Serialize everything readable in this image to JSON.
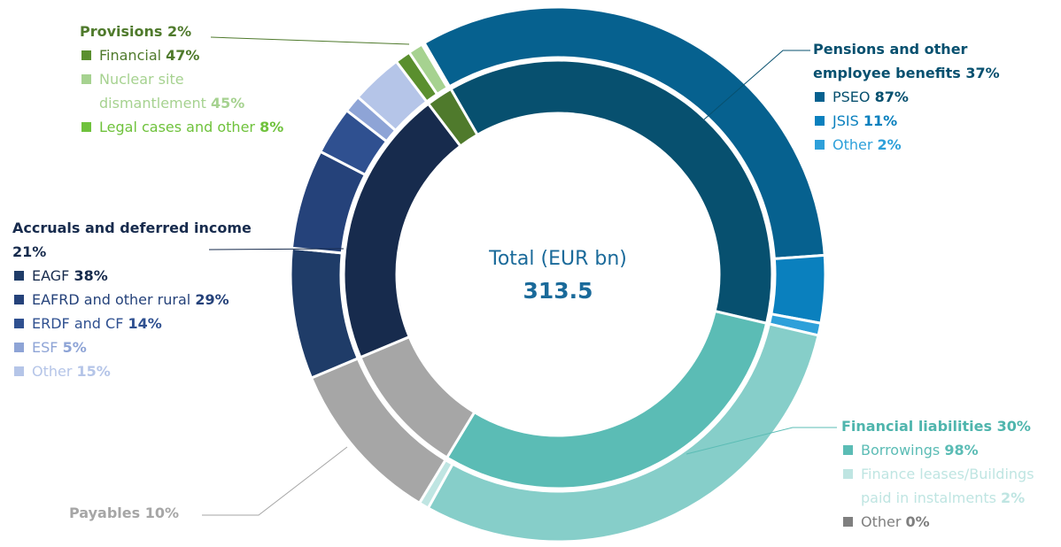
{
  "chart_data": {
    "type": "nested-donut",
    "center_label": "Total (EUR bn)",
    "center_value": 313.5,
    "series": [
      {
        "name": "Pensions and other employee benefits",
        "value": 37,
        "value_label": "37%",
        "color": "#07506f",
        "children": [
          {
            "name": "PSEO",
            "value": 87,
            "value_label": "87%",
            "color": "#06618f"
          },
          {
            "name": "JSIS",
            "value": 11,
            "value_label": "11%",
            "color": "#0a80be"
          },
          {
            "name": "Other",
            "value": 2,
            "value_label": "2%",
            "color": "#2ea0da"
          }
        ]
      },
      {
        "name": "Financial liabilities",
        "value": 30,
        "value_label": "30%",
        "color": "#5bbcb5",
        "children": [
          {
            "name": "Borrowings",
            "value": 98,
            "value_label": "98%",
            "color": "#86cec9"
          },
          {
            "name": "Finance leases/Buildings paid in instalments",
            "value": 2,
            "value_label": "2%",
            "color": "#bfe5e2"
          },
          {
            "name": "Other",
            "value": 0,
            "value_label": "0%",
            "color": "#7f7f7f"
          }
        ]
      },
      {
        "name": "Payables",
        "value": 10,
        "value_label": "10%",
        "color": "#a6a6a6",
        "children": []
      },
      {
        "name": "Accruals and deferred income",
        "value": 21,
        "value_label": "21%",
        "color": "#172b4d",
        "children": [
          {
            "name": "EAGF",
            "value": 38,
            "value_label": "38%",
            "color": "#1f3c68"
          },
          {
            "name": "EAFRD and other rural",
            "value": 29,
            "value_label": "29%",
            "color": "#25427a"
          },
          {
            "name": "ERDF and CF",
            "value": 14,
            "value_label": "14%",
            "color": "#2f5090"
          },
          {
            "name": "ESF",
            "value": 5,
            "value_label": "5%",
            "color": "#8ea4d6"
          },
          {
            "name": "Other",
            "value": 15,
            "value_label": "15%",
            "color": "#b5c5e8"
          }
        ]
      },
      {
        "name": "Provisions",
        "value": 2,
        "value_label": "2%",
        "color": "#4f7a2c",
        "children": [
          {
            "name": "Financial",
            "value": 47,
            "value_label": "47%",
            "color": "#5a8f2e"
          },
          {
            "name": "Nuclear site dismantlement",
            "value": 45,
            "value_label": "45%",
            "color": "#a6d290"
          },
          {
            "name": "Legal cases and other",
            "value": 8,
            "value_label": "8%",
            "color": "#6fc23c"
          }
        ]
      }
    ]
  }
}
